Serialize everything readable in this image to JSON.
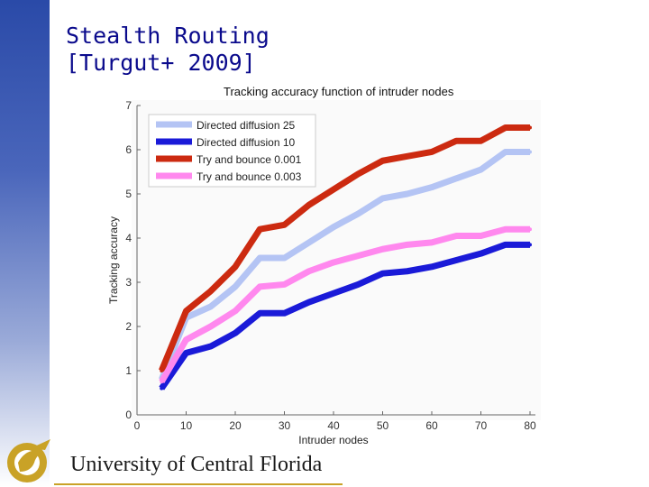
{
  "slide": {
    "title_line1": "Stealth Routing",
    "title_line2": "[Turgut+ 2009]"
  },
  "footer": {
    "university": "University of Central Florida"
  },
  "colors": {
    "sidebar": "#2a4aa8",
    "title": "#0a0a8c",
    "logo_gold": "#c9a227"
  },
  "chart_data": {
    "type": "line",
    "title": "Tracking accuracy function of intruder nodes",
    "xlabel": "Intruder nodes",
    "ylabel": "Tracking accuracy",
    "xlim": [
      0,
      80
    ],
    "ylim": [
      0,
      7
    ],
    "xticks": [
      0,
      10,
      20,
      30,
      40,
      50,
      60,
      70,
      80
    ],
    "yticks": [
      0,
      1,
      2,
      3,
      4,
      5,
      6,
      7
    ],
    "grid": false,
    "legend_position": "top-left",
    "x": [
      5,
      10,
      15,
      20,
      25,
      30,
      35,
      40,
      45,
      50,
      55,
      60,
      65,
      70,
      75,
      80
    ],
    "series": [
      {
        "name": "Directed diffusion 25",
        "color": "#b4c4f4",
        "values": [
          0.8,
          2.2,
          2.45,
          2.9,
          3.55,
          3.55,
          3.9,
          4.25,
          4.55,
          4.9,
          5.0,
          5.15,
          5.35,
          5.55,
          5.95,
          5.95
        ]
      },
      {
        "name": "Directed diffusion 10",
        "color": "#1a1ad8",
        "values": [
          0.6,
          1.4,
          1.55,
          1.85,
          2.3,
          2.3,
          2.55,
          2.75,
          2.95,
          3.2,
          3.25,
          3.35,
          3.5,
          3.65,
          3.85,
          3.85
        ]
      },
      {
        "name": "Try and bounce 0.001",
        "color": "#cc2a10",
        "values": [
          1.0,
          2.35,
          2.8,
          3.35,
          4.2,
          4.3,
          4.75,
          5.1,
          5.45,
          5.75,
          5.85,
          5.95,
          6.2,
          6.2,
          6.5,
          6.5
        ]
      },
      {
        "name": "Try and bounce 0.003",
        "color": "#ff88ee",
        "values": [
          0.75,
          1.7,
          2.0,
          2.35,
          2.9,
          2.95,
          3.25,
          3.45,
          3.6,
          3.75,
          3.85,
          3.9,
          4.05,
          4.05,
          4.2,
          4.2
        ]
      }
    ]
  }
}
